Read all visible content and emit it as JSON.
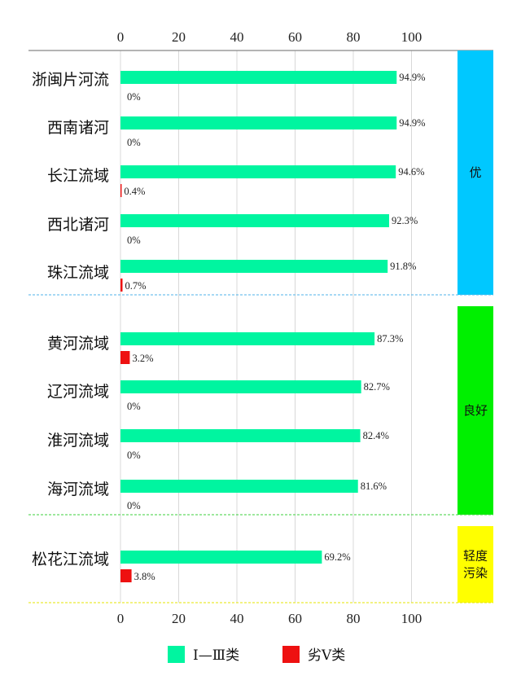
{
  "chart_data": {
    "type": "bar",
    "orientation": "horizontal",
    "categories": [
      "浙闽片河流",
      "西南诸河",
      "长江流域",
      "西北诸河",
      "珠江流域",
      "黄河流域",
      "辽河流域",
      "淮河流域",
      "海河流域",
      "松花江流域"
    ],
    "series": [
      {
        "name": "Ⅰ—Ⅲ类",
        "color": "#00f5a0",
        "values": [
          94.9,
          94.9,
          94.6,
          92.3,
          91.8,
          87.3,
          82.7,
          82.4,
          81.6,
          69.2
        ],
        "labels": [
          "94.9%",
          "94.9%",
          "94.6%",
          "92.3%",
          "91.8%",
          "87.3%",
          "82.7%",
          "82.4%",
          "81.6%",
          "69.2%"
        ]
      },
      {
        "name": "劣Ⅴ类",
        "color": "#ee1111",
        "values": [
          0,
          0,
          0.4,
          0,
          0.7,
          3.2,
          0,
          0,
          0,
          3.8
        ],
        "labels": [
          "0%",
          "0%",
          "0.4%",
          "0%",
          "0.7%",
          "3.2%",
          "0%",
          "0%",
          "0%",
          "3.8%"
        ]
      }
    ],
    "xticks": [
      0,
      20,
      40,
      60,
      80,
      100
    ],
    "xlim": [
      0,
      115
    ],
    "grid": true,
    "legend": "bottom",
    "groups": [
      {
        "label": "优",
        "start": 0,
        "end": 4,
        "color": "#00c8ff"
      },
      {
        "label": "良好",
        "start": 5,
        "end": 8,
        "color": "#00f000"
      },
      {
        "label": "轻度\n污染",
        "start": 9,
        "end": 9,
        "color": "#ffff00"
      }
    ]
  }
}
